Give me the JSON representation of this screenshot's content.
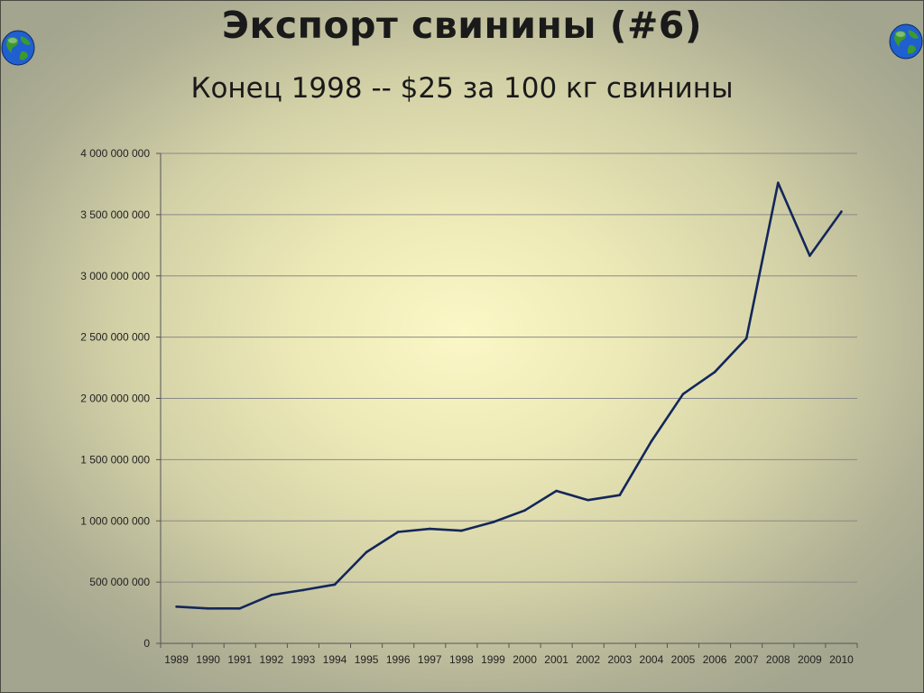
{
  "slide": {
    "title": "Экспорт свинины (#6)",
    "subtitle": "Конец 1998 -- $25 за 100 кг свинины",
    "icons": [
      "globe-icon",
      "globe-icon"
    ]
  },
  "colors": {
    "line": "#13275a",
    "grid": "#8a8a8a",
    "axis": "#555555"
  },
  "chart_data": {
    "type": "line",
    "title": "",
    "xlabel": "",
    "ylabel": "",
    "ylim": [
      0,
      4000000000
    ],
    "grid": true,
    "categories": [
      "1989",
      "1990",
      "1991",
      "1992",
      "1993",
      "1994",
      "1995",
      "1996",
      "1997",
      "1998",
      "1999",
      "2000",
      "2001",
      "2002",
      "2003",
      "2004",
      "2005",
      "2006",
      "2007",
      "2008",
      "2009",
      "2010"
    ],
    "y_tick_labels": [
      "0",
      "500 000 000",
      "1 000 000 000",
      "1 500 000 000",
      "2 000 000 000",
      "2 500 000 000",
      "3 000 000 000",
      "3 500 000 000",
      "4 000 000 000"
    ],
    "series": [
      {
        "values": [
          300000000,
          285000000,
          285000000,
          395000000,
          435000000,
          480000000,
          745000000,
          910000000,
          935000000,
          920000000,
          990000000,
          1085000000,
          1245000000,
          1170000000,
          1210000000,
          1650000000,
          2035000000,
          2215000000,
          2490000000,
          3760000000,
          3165000000,
          3525000000
        ]
      }
    ]
  }
}
